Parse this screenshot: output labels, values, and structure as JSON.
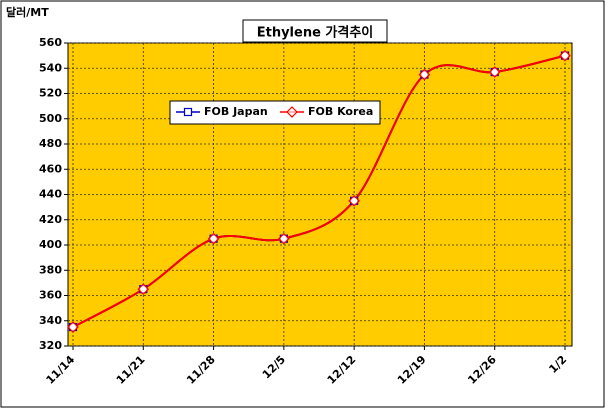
{
  "chart_data": {
    "type": "line",
    "title": "Ethylene 가격추이",
    "y_label": "달러/MT",
    "categories": [
      "11/14",
      "11/21",
      "11/28",
      "12/5",
      "12/12",
      "12/19",
      "12/26",
      "1/2"
    ],
    "series": [
      {
        "name": "FOB Japan",
        "color": "#0000cc",
        "values": [
          335,
          365,
          405,
          405,
          435,
          535,
          537,
          550
        ]
      },
      {
        "name": "FOB Korea",
        "color": "#ff0000",
        "values": [
          335,
          365,
          405,
          405,
          435,
          535,
          537,
          550
        ]
      }
    ],
    "ylim": [
      320,
      560
    ],
    "yticks": [
      320,
      340,
      360,
      380,
      400,
      420,
      440,
      460,
      480,
      500,
      520,
      540,
      560
    ],
    "grid": true,
    "plot_color": "#ffcc00",
    "smooth": true
  }
}
